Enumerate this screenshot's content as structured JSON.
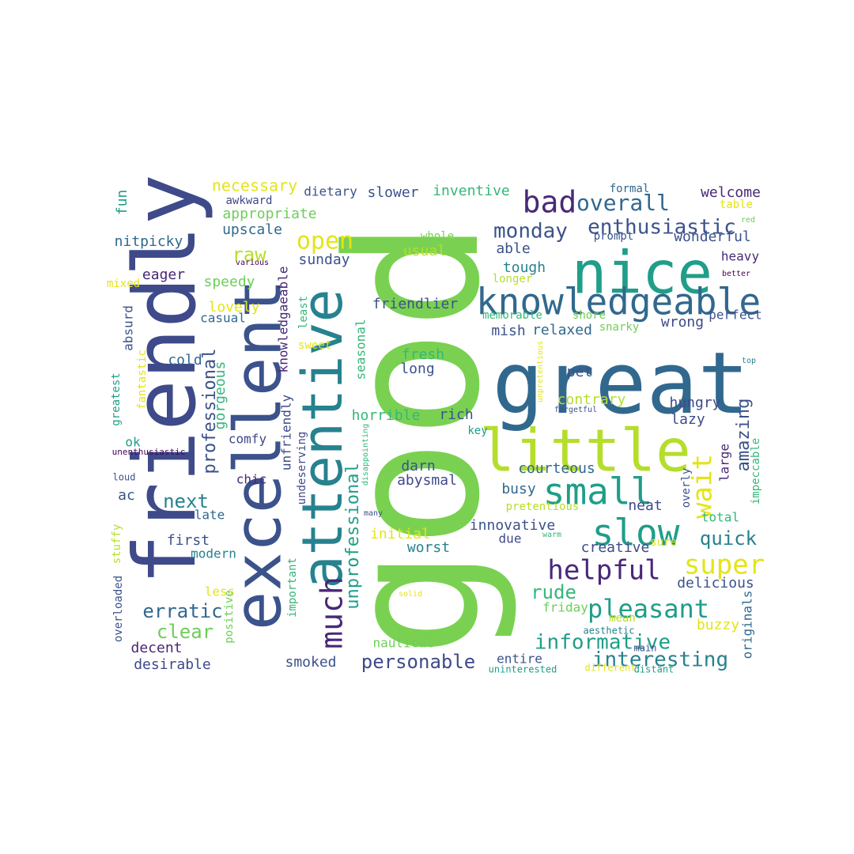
{
  "wordcloud": {
    "palette": {
      "purple": "#482878",
      "indigo": "#3e4a89",
      "blue": "#31688e",
      "teal": "#26828e",
      "sea": "#1f9e89",
      "green": "#35b779",
      "lime": "#6ece58",
      "grass": "#7ad151",
      "chartreuse": "#b5de2b",
      "yellow": "#e4e419",
      "navy": "#3b528b",
      "deep": "#440154"
    },
    "words": [
      {
        "text": "good"
      },
      {
        "text": "great"
      },
      {
        "text": "friendly"
      },
      {
        "text": "excellent"
      },
      {
        "text": "attentive"
      },
      {
        "text": "nice"
      },
      {
        "text": "little"
      },
      {
        "text": "knowledgeable"
      },
      {
        "text": "small"
      },
      {
        "text": "slow"
      },
      {
        "text": "bad"
      },
      {
        "text": "much"
      },
      {
        "text": "helpful"
      },
      {
        "text": "pleasant"
      },
      {
        "text": "super"
      },
      {
        "text": "wait"
      },
      {
        "text": "open"
      },
      {
        "text": "overall"
      },
      {
        "text": "enthusiastic"
      },
      {
        "text": "monday"
      },
      {
        "text": "informative"
      },
      {
        "text": "interesting"
      },
      {
        "text": "personable"
      },
      {
        "text": "erratic"
      },
      {
        "text": "clear"
      },
      {
        "text": "quick"
      },
      {
        "text": "rude"
      },
      {
        "text": "amazing"
      },
      {
        "text": "professional"
      },
      {
        "text": "unprofessional"
      },
      {
        "text": "next"
      },
      {
        "text": "necessary"
      },
      {
        "text": "appropriate"
      },
      {
        "text": "upscale"
      },
      {
        "text": "raw"
      },
      {
        "text": "nitpicky"
      },
      {
        "text": "speedy"
      },
      {
        "text": "lovely"
      },
      {
        "text": "eager"
      },
      {
        "text": "fun"
      },
      {
        "text": "awkward"
      },
      {
        "text": "dietary"
      },
      {
        "text": "slower"
      },
      {
        "text": "inventive"
      },
      {
        "text": "welcome"
      },
      {
        "text": "table"
      },
      {
        "text": "formal"
      },
      {
        "text": "wonderful"
      },
      {
        "text": "prompt"
      },
      {
        "text": "red"
      },
      {
        "text": "whole"
      },
      {
        "text": "usual"
      },
      {
        "text": "able"
      },
      {
        "text": "sunday"
      },
      {
        "text": "various"
      },
      {
        "text": "heavy"
      },
      {
        "text": "better"
      },
      {
        "text": "tough"
      },
      {
        "text": "longer"
      },
      {
        "text": "friendlier"
      },
      {
        "text": "mixed"
      },
      {
        "text": "memorable"
      },
      {
        "text": "shore"
      },
      {
        "text": "perfect"
      },
      {
        "text": "relaxed"
      },
      {
        "text": "mish"
      },
      {
        "text": "snarky"
      },
      {
        "text": "wrong"
      },
      {
        "text": "casual"
      },
      {
        "text": "least"
      },
      {
        "text": "knowledgaeable"
      },
      {
        "text": "absurd"
      },
      {
        "text": "cold"
      },
      {
        "text": "sweet"
      },
      {
        "text": "fantastic"
      },
      {
        "text": "gorgeous"
      },
      {
        "text": "fresh"
      },
      {
        "text": "long"
      },
      {
        "text": "seasonal"
      },
      {
        "text": "top"
      },
      {
        "text": "pet"
      },
      {
        "text": "contrary"
      },
      {
        "text": "hungry"
      },
      {
        "text": "unpretentious"
      },
      {
        "text": "forgetful"
      },
      {
        "text": "horrible"
      },
      {
        "text": "rich"
      },
      {
        "text": "lazy"
      },
      {
        "text": "greatest"
      },
      {
        "text": "unfriendly"
      },
      {
        "text": "key"
      },
      {
        "text": "ok"
      },
      {
        "text": "comfy"
      },
      {
        "text": "unenthusiastic"
      },
      {
        "text": "disappointing"
      },
      {
        "text": "large"
      },
      {
        "text": "impeccable"
      },
      {
        "text": "courteous"
      },
      {
        "text": "darn"
      },
      {
        "text": "abysmal"
      },
      {
        "text": "loud"
      },
      {
        "text": "chic"
      },
      {
        "text": "undeserving"
      },
      {
        "text": "busy"
      },
      {
        "text": "ac"
      },
      {
        "text": "overly"
      },
      {
        "text": "neat"
      },
      {
        "text": "pretentious"
      },
      {
        "text": "many"
      },
      {
        "text": "late"
      },
      {
        "text": "total"
      },
      {
        "text": "innovative"
      },
      {
        "text": "initial"
      },
      {
        "text": "due"
      },
      {
        "text": "first"
      },
      {
        "text": "warm"
      },
      {
        "text": "sure"
      },
      {
        "text": "stuffy"
      },
      {
        "text": "worst"
      },
      {
        "text": "creative"
      },
      {
        "text": "modern"
      },
      {
        "text": "important"
      },
      {
        "text": "delicious"
      },
      {
        "text": "less"
      },
      {
        "text": "solid"
      },
      {
        "text": "overloaded"
      },
      {
        "text": "positive"
      },
      {
        "text": "friday"
      },
      {
        "text": "originals"
      },
      {
        "text": "mean"
      },
      {
        "text": "buzzy"
      },
      {
        "text": "aesthetic"
      },
      {
        "text": "main"
      },
      {
        "text": "decent"
      },
      {
        "text": "nautical"
      },
      {
        "text": "smoked"
      },
      {
        "text": "entire"
      },
      {
        "text": "desirable"
      },
      {
        "text": "uninterested"
      },
      {
        "text": "different"
      },
      {
        "text": "distant"
      }
    ]
  }
}
